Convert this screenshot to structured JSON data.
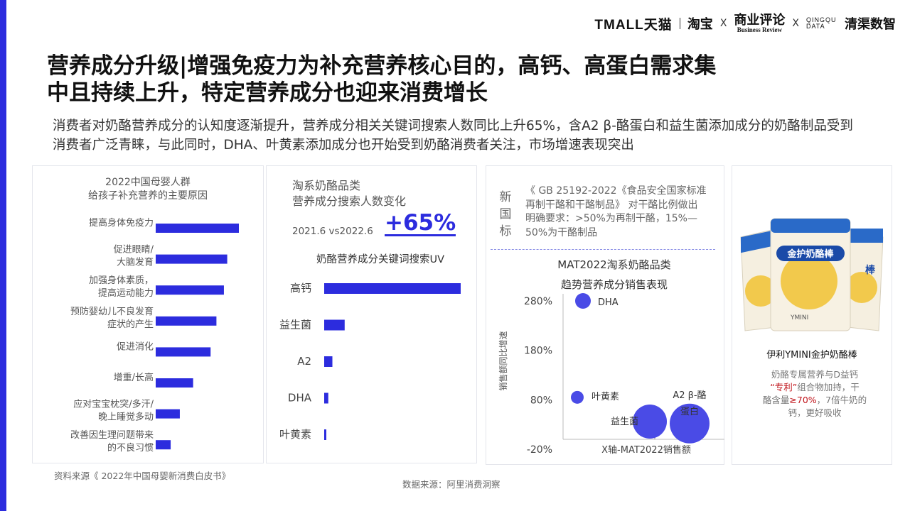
{
  "header": {
    "brand_tmall": "TMALL",
    "brand_tmall_cn": "天猫",
    "brand_taobao": "淘宝",
    "brand_x": "X",
    "brand_br_cn": "商业评论",
    "brand_br_en": "Business Review",
    "brand_qq_en_top": "QINGQU",
    "brand_qq_en_bottom": "DATA",
    "brand_qq_cn": "清渠数智"
  },
  "title_line1": "营养成分升级|增强免疫力为补充营养核心目的，高钙、高蛋白需求集",
  "title_line2": "中且持续上升，特定营养成分也迎来消费增长",
  "subtitle": "消费者对奶酪营养成分的认知度逐渐提升，营养成分相关关键词搜索人数同比上升65%，含A2 β-酪蛋白和益生菌添加成分的奶酪制品受到消费者广泛青睐，与此同时，DHA、叶黄素添加成分也开始受到奶酪消费者关注，市场增速表现突出",
  "panel1": {
    "title_line1": "2022中国母婴人群",
    "title_line2": "给孩子补充营养的主要原因"
  },
  "panel2": {
    "title_line1": "淘系奶酪品类",
    "title_line2": "营养成分搜索人数变化",
    "period": "2021.6 vs2022.6",
    "growth": "+65%",
    "chart_title": "奶酪营养成分关键词搜索UV"
  },
  "panel3": {
    "std_label": "新国标",
    "std_text": "《 GB 25192-2022《食品安全国家标准 再制干酪和干酪制品》 对干酪比例做出明确要求：>50%为再制干酪，15%—50%为干酪制品",
    "chart_title_line1": "MAT2022淘系奶酪品类",
    "chart_title_line2": "趋势营养成分销售表现"
  },
  "panel4": {
    "package_brand": "YMINI",
    "package_text": "金护奶酪棒",
    "product_name": "伊利YMINI金护奶酪棒",
    "desc_line1": "奶酪专属营养与D益钙",
    "desc_quote_open": "“",
    "desc_patent": "专利",
    "desc_quote_close": "”",
    "desc_line2_rest": "组合物加持，干",
    "desc_line3_prefix": "酪含量",
    "desc_percent": "≥70%",
    "desc_line3_suffix": "，7倍牛奶的",
    "desc_line4": "钙，更好吸收"
  },
  "source1": "资料来源《 2022年中国母婴新消费白皮书》",
  "source2": "数据来源：阿里消费洞察",
  "colors": {
    "accent": "#2c2cde",
    "bubble": "#4a4be6",
    "red": "#c0141b"
  },
  "chart_data": [
    {
      "type": "bar",
      "orientation": "horizontal",
      "categories": [
        "提高身体免疫力",
        "促进眼睛/大脑发育",
        "加强身体素质，提高运动能力",
        "预防婴幼儿不良发育症状的产生",
        "促进消化",
        "增重/长高",
        "应对宝宝枕突/多汗/晚上睡觉多动",
        "改善因生理问题带来的不良习惯"
      ],
      "values": [
        100,
        86,
        82,
        73,
        66,
        45,
        29,
        18
      ],
      "title": "2022中国母婴人群给孩子补充营养的主要原因",
      "xlabel": "",
      "ylabel": "",
      "grid": false
    },
    {
      "type": "bar",
      "orientation": "horizontal",
      "categories": [
        "高钙",
        "益生菌",
        "A2",
        "DHA",
        "叶黄素"
      ],
      "values": [
        100,
        15,
        6,
        3,
        1.5
      ],
      "title": "奶酪营养成分关键词搜索UV",
      "xlabel": "",
      "ylabel": "",
      "grid": false
    },
    {
      "type": "scatter",
      "title": "MAT2022淘系奶酪品类 趋势营养成分销售表现",
      "xlabel": "X轴-MAT2022销售额",
      "ylabel": "销售额同比增速",
      "yticks": [
        "280%",
        "180%",
        "80%",
        "-20%"
      ],
      "ylim": [
        -20,
        280
      ],
      "points": [
        {
          "name": "DHA",
          "y": 280,
          "size": "small"
        },
        {
          "name": "叶黄素",
          "y": 85,
          "size": "small"
        },
        {
          "name": "益生菌",
          "y": 36,
          "size": "large"
        },
        {
          "name": "A2 β-酪蛋白",
          "y": 32,
          "size": "large"
        }
      ],
      "grid": false
    }
  ]
}
